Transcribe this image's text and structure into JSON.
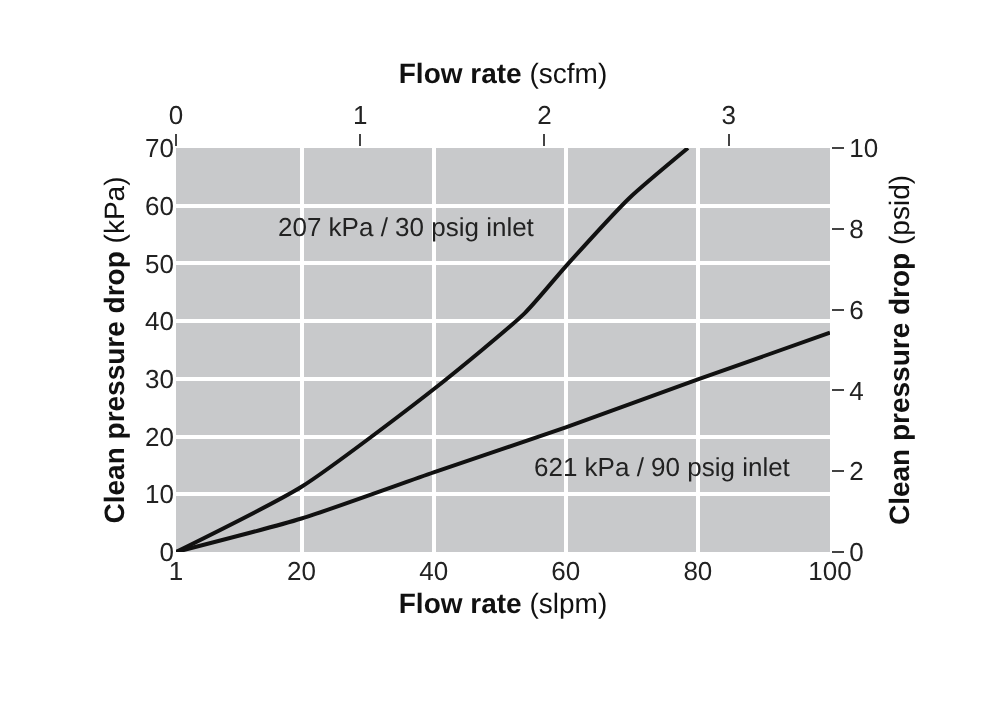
{
  "chart_data": {
    "type": "line",
    "xlabel": "Flow rate (slpm)",
    "ylabel": "Clean pressure drop (kPa)",
    "y2label": "Clean pressure drop (psid)",
    "x2label": "Flow rate (scfm)",
    "xlim": [
      1,
      100
    ],
    "xticks": [
      1,
      20,
      40,
      60,
      80,
      100
    ],
    "ylim": [
      0,
      70
    ],
    "yticks": [
      0,
      10,
      20,
      30,
      40,
      50,
      60,
      70
    ],
    "y2lim": [
      0,
      10
    ],
    "y2ticks": [
      0,
      2,
      4,
      6,
      8,
      10
    ],
    "x2lim": [
      0,
      3.55
    ],
    "x2ticks": [
      0,
      1,
      2,
      3
    ],
    "grid": true,
    "line_style": "solid",
    "series": [
      {
        "name": "207 kPa / 30 psig inlet",
        "color": "#111111",
        "x": [
          1,
          20,
          40,
          53.8,
          60,
          69.6,
          78.5
        ],
        "values": [
          0,
          11.3,
          28.2,
          41.4,
          49.5,
          61.3,
          70
        ]
      },
      {
        "name": "621 kPa / 90 psig inlet",
        "color": "#111111",
        "x": [
          1,
          20,
          40,
          60,
          80,
          100
        ],
        "values": [
          0,
          5.8,
          13.8,
          21.6,
          29.9,
          38
        ]
      }
    ]
  }
}
